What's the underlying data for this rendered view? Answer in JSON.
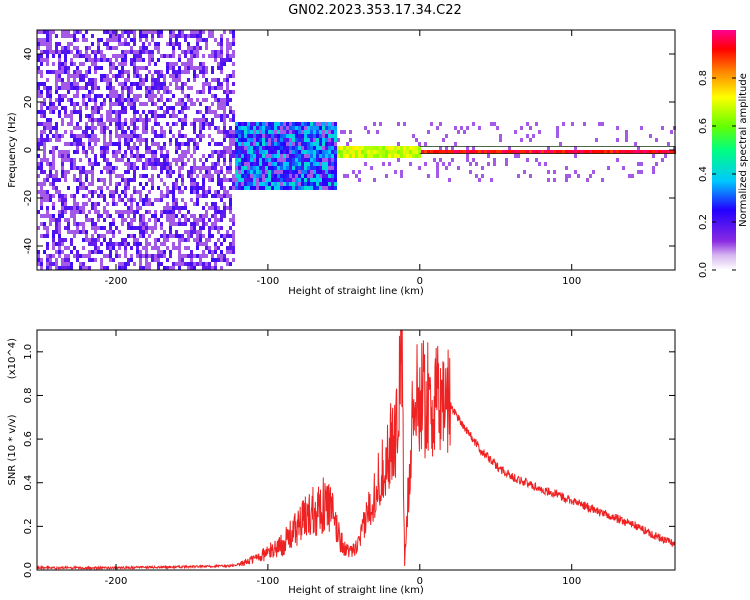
{
  "title": "GN02.2023.353.17.34.C22",
  "chart_data": [
    {
      "type": "heatmap",
      "xlabel": "Height of straight line (km)",
      "ylabel": "Frequency (Hz)",
      "xlim": [
        -252,
        168
      ],
      "ylim": [
        -50,
        50
      ],
      "xticks": [
        -200,
        -100,
        0,
        100
      ],
      "yticks": [
        -40,
        -20,
        0,
        20,
        40
      ],
      "colorbar": {
        "label": "Normalized spectral amplitude",
        "range": [
          0.0,
          1.0
        ],
        "ticks": [
          0.0,
          0.2,
          0.4,
          0.6,
          0.8
        ]
      },
      "grid": false,
      "regions": [
        {
          "x_range": [
            -252,
            -123
          ],
          "freq_range": [
            -50,
            50
          ],
          "amplitude": 0.05,
          "desc": "broadband noise"
        },
        {
          "x_range": [
            -123,
            -55
          ],
          "freq_range": [
            -15,
            12
          ],
          "amplitude": 0.3
        },
        {
          "x_range": [
            -55,
            0
          ],
          "freq_range": [
            -3,
            3
          ],
          "amplitude": 0.7
        },
        {
          "x_range": [
            0,
            168
          ],
          "freq_range": [
            -1,
            1
          ],
          "amplitude": 0.95
        }
      ]
    },
    {
      "type": "line",
      "xlabel": "Height of straight line (km)",
      "ylabel": "SNR (10 * v/v)",
      "y_multiplier": "(x10^4)",
      "xlim": [
        -252,
        168
      ],
      "ylim": [
        0.0,
        1.1
      ],
      "xticks": [
        -200,
        -100,
        0,
        100
      ],
      "yticks": [
        0.0,
        0.2,
        0.4,
        0.6,
        0.8,
        1.0
      ],
      "series_color": "#ee2222",
      "series": [
        {
          "x": [
            -252,
            -200,
            -150,
            -120,
            -110,
            -100,
            -90,
            -80,
            -70,
            -60,
            -55,
            -50,
            -45,
            -40,
            -35,
            -30,
            -25,
            -20,
            -15,
            -12,
            -10,
            -5,
            0,
            5,
            10,
            15,
            20,
            25,
            30,
            40,
            50,
            60,
            80,
            100,
            120,
            140,
            160,
            168
          ],
          "y": [
            0.01,
            0.01,
            0.015,
            0.02,
            0.05,
            0.08,
            0.12,
            0.2,
            0.28,
            0.3,
            0.2,
            0.1,
            0.08,
            0.12,
            0.25,
            0.35,
            0.45,
            0.55,
            0.65,
            1.1,
            0.02,
            0.72,
            0.8,
            0.78,
            0.75,
            0.8,
            0.76,
            0.7,
            0.65,
            0.55,
            0.48,
            0.43,
            0.37,
            0.32,
            0.26,
            0.21,
            0.14,
            0.12
          ]
        }
      ]
    }
  ]
}
